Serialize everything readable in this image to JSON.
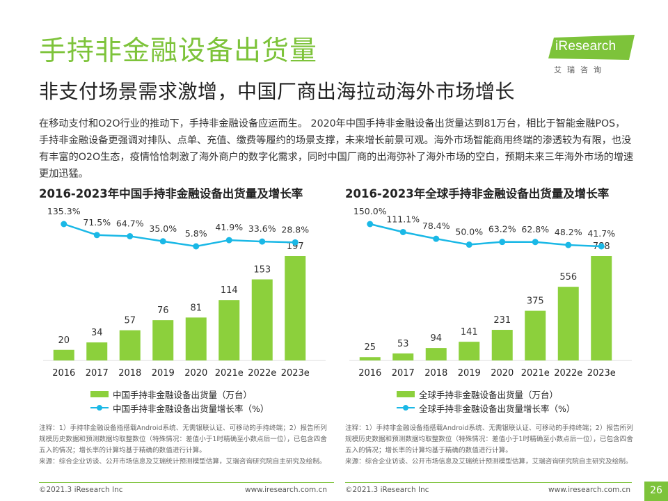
{
  "header": {
    "title": "手持非金融设备出货量",
    "subtitle": "非支付场景需求激增，中国厂商出海拉动海外市场增长",
    "intro": "在移动支付和O2O行业的推动下，手持非金融设备应运而生。 2020年中国手持非金融设备出货量达到81万台，相比于智能金融POS，手持非金融设备更强调对排队、点单、充值、缴费等履约的场景支撑，未来增长前景可观。海外市场智能商用终端的渗透较为有限，也没有丰富的O2O生态，疫情恰恰刺激了海外商户的数字化需求，同时中国厂商的出海弥补了海外市场的空白，预期未来三年海外市场的增速更加迅猛。"
  },
  "logo": {
    "text": "iResearch",
    "sub": "艾瑞咨询"
  },
  "colors": {
    "brand_green": "#7dc33a",
    "bar_green": "#8cd03c",
    "line_blue": "#1ab8e6"
  },
  "chart_data": [
    {
      "type": "bar",
      "title": "2016-2023年中国手持非金融设备出货量及增长率",
      "categories": [
        "2016",
        "2017",
        "2018",
        "2019",
        "2020",
        "2021e",
        "2022e",
        "2023e"
      ],
      "series": [
        {
          "name": "中国手持非金融设备出货量（万台）",
          "type": "bar",
          "values": [
            20,
            34,
            57,
            76,
            81,
            114,
            153,
            197
          ],
          "labels": [
            "20",
            "34",
            "57",
            "76",
            "81",
            "114",
            "153",
            "197"
          ]
        },
        {
          "name": "中国手持非金融设备出货量增长率（%）",
          "type": "line",
          "values": [
            135.3,
            71.5,
            64.7,
            35.0,
            5.8,
            41.9,
            33.6,
            28.8
          ],
          "labels": [
            "135.3%",
            "71.5%",
            "64.7%",
            "35.0%",
            "5.8%",
            "41.9%",
            "33.6%",
            "28.8%"
          ]
        }
      ]
    },
    {
      "type": "bar",
      "title": "2016-2023年全球手持非金融设备出货量及增长率",
      "categories": [
        "2016",
        "2017",
        "2018",
        "2019",
        "2020",
        "2021e",
        "2022e",
        "2023e"
      ],
      "series": [
        {
          "name": "全球手持非金融设备出货量（万台）",
          "type": "bar",
          "values": [
            25,
            53,
            94,
            141,
            231,
            375,
            556,
            788
          ],
          "labels": [
            "25",
            "53",
            "94",
            "141",
            "231",
            "375",
            "556",
            "788"
          ]
        },
        {
          "name": "全球手持非金融设备出货量增长率（%）",
          "type": "line",
          "values": [
            150.0,
            111.1,
            78.4,
            50.0,
            63.2,
            62.8,
            48.2,
            41.7
          ],
          "labels": [
            "150.0%",
            "111.1%",
            "78.4%",
            "50.0%",
            "63.2%",
            "62.8%",
            "48.2%",
            "41.7%"
          ]
        }
      ]
    }
  ],
  "notes": {
    "text": "注释：1）手持非金融设备指搭载Android系统、无需银联认证、可移动的手持终端；2）报告所列规模历史数据和预测数据均取整数位（特殊情况：差值小于1时精确至小数点后一位），已包含四舍五入的情况；增长率的计算均基于精确的数值进行计算。",
    "source": "来源：综合企业访谈、公开市场信息及艾瑞统计预测模型估算，艾瑞咨询研究院自主研究及绘制。"
  },
  "footer": {
    "copyright": "©2021.3 iResearch Inc",
    "website": "www.iresearch.com.cn",
    "page": "26"
  }
}
